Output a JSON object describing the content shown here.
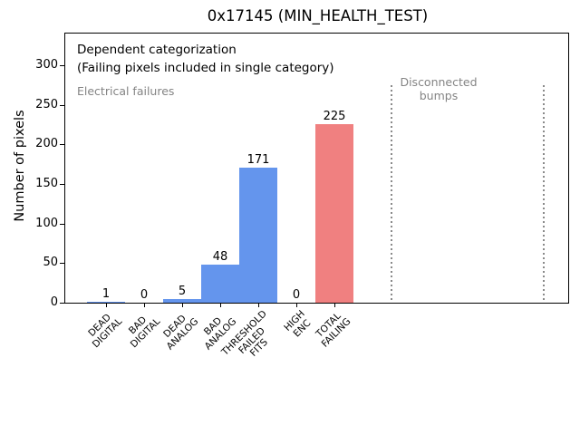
{
  "title": "0x17145 (MIN_HEALTH_TEST)",
  "annotations": {
    "dependent": "Dependent categorization\n(Failing pixels included in single category)",
    "electrical": "Electrical failures",
    "disconnected": "Disconnected\nbumps"
  },
  "colors": {
    "bar_blue": "#6495ED",
    "bar_red": "#F08080",
    "gray_text": "#848484",
    "dotted_line": "#8a8a8a",
    "axis": "#000000",
    "background": "#ffffff"
  },
  "chart_data": {
    "type": "bar",
    "title": "0x17145 (MIN_HEALTH_TEST)",
    "xlabel": "",
    "ylabel": "Number of pixels",
    "categories": [
      "DEAD\nDIGITAL",
      "BAD\nDIGITAL",
      "DEAD\nANALOG",
      "BAD\nANALOG",
      "THRESHOLD\nFAILED\nFITS",
      "HIGH\nENC",
      "TOTAL\nFAILING"
    ],
    "values": [
      1,
      0,
      5,
      48,
      171,
      0,
      225
    ],
    "value_labels": [
      "1",
      "0",
      "5",
      "48",
      "171",
      "0",
      "225"
    ],
    "bar_colors": [
      "#6495ED",
      "#6495ED",
      "#6495ED",
      "#6495ED",
      "#6495ED",
      "#6495ED",
      "#F08080"
    ],
    "yticks": [
      0,
      50,
      100,
      150,
      200,
      250,
      300
    ],
    "ylim": [
      0,
      340
    ],
    "xlim": [
      -1.07,
      12.14
    ],
    "grid": false,
    "legend": null,
    "region_separators": {
      "style": "dotted",
      "color": "#8a8a8a",
      "x_data_positions": [
        7.5,
        11.5
      ],
      "top_value": 275
    },
    "regions": [
      {
        "label": "Electrical failures",
        "side": "left"
      },
      {
        "label": "Disconnected bumps",
        "side": "right"
      }
    ]
  }
}
